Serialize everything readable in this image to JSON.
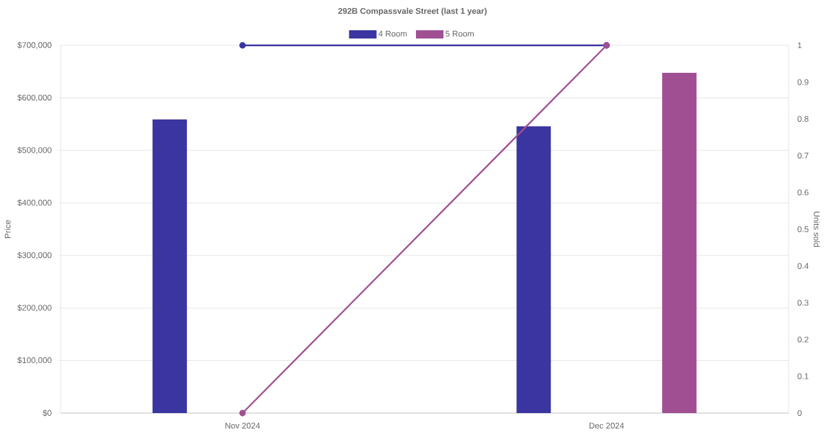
{
  "chart_data": {
    "type": "bar",
    "title": "292B Compassvale Street (last 1 year)",
    "ylabel": "Price",
    "y2label": "Units sold",
    "categories": [
      "Nov 2024",
      "Dec 2024"
    ],
    "series": [
      {
        "name": "4 Room",
        "color": "#3a35a0",
        "values": [
          559000,
          546000
        ]
      },
      {
        "name": "5 Room",
        "color": "#a05092",
        "values": [
          null,
          648000
        ]
      },
      {
        "type": "line",
        "axis": "y2",
        "color": "#3a35a0",
        "marker": "circle",
        "values": [
          1,
          1
        ]
      },
      {
        "type": "line",
        "axis": "y2",
        "color": "#a05092",
        "marker": "circle",
        "values": [
          0,
          1
        ]
      }
    ],
    "ylim": [
      0,
      700000
    ],
    "yticks": [
      {
        "value": 0,
        "label": "$0"
      },
      {
        "value": 100000,
        "label": "$100,000"
      },
      {
        "value": 200000,
        "label": "$200,000"
      },
      {
        "value": 300000,
        "label": "$300,000"
      },
      {
        "value": 400000,
        "label": "$400,000"
      },
      {
        "value": 500000,
        "label": "$500,000"
      },
      {
        "value": 600000,
        "label": "$600,000"
      },
      {
        "value": 700000,
        "label": "$700,000"
      }
    ],
    "y2lim": [
      0,
      1
    ],
    "y2ticks": [
      0,
      0.1,
      0.2,
      0.3,
      0.4,
      0.5,
      0.6,
      0.7,
      0.8,
      0.9,
      1
    ],
    "grid": "y",
    "legend": "top"
  }
}
